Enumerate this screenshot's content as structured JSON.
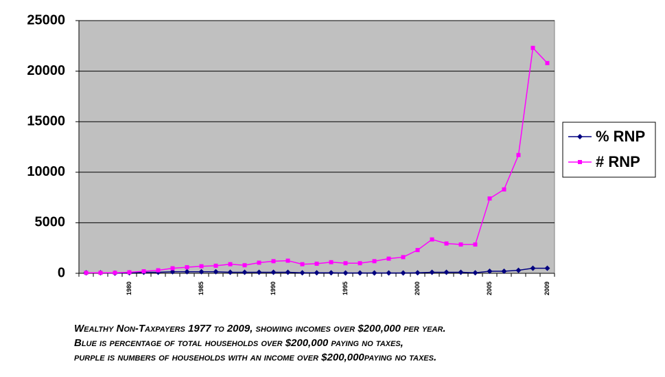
{
  "chart_data": {
    "type": "line",
    "categories": [
      null,
      null,
      null,
      "1980",
      null,
      null,
      null,
      null,
      "1985",
      null,
      null,
      null,
      null,
      "1990",
      null,
      null,
      null,
      null,
      "1995",
      null,
      null,
      null,
      null,
      "2000",
      null,
      null,
      null,
      null,
      "2005",
      null,
      null,
      null,
      "2009"
    ],
    "series": [
      {
        "name": "% RNP",
        "color": "#000080",
        "marker": "diamond",
        "values": [
          50,
          50,
          20,
          50,
          100,
          100,
          150,
          150,
          150,
          150,
          100,
          100,
          100,
          100,
          100,
          50,
          50,
          50,
          30,
          30,
          30,
          30,
          30,
          50,
          100,
          100,
          100,
          50,
          200,
          200,
          300,
          500,
          500
        ]
      },
      {
        "name": "# RNP",
        "color": "#ff00ff",
        "marker": "square",
        "values": [
          50,
          50,
          50,
          100,
          200,
          300,
          500,
          600,
          700,
          750,
          900,
          800,
          1050,
          1200,
          1250,
          900,
          950,
          1100,
          1000,
          1000,
          1200,
          1450,
          1600,
          2300,
          3350,
          2950,
          2850,
          2850,
          7400,
          8300,
          11700,
          22300,
          20800
        ]
      }
    ],
    "ylim": [
      0,
      25000
    ],
    "yticks": [
      0,
      5000,
      10000,
      15000,
      20000,
      25000
    ],
    "grid": true,
    "legend": "right",
    "plot_background": "#c0c0c0"
  },
  "caption": [
    "Wealthy Non-Taxpayers 1977 to 2009, showing incomes over $200,000 per year.",
    "Blue is percentage of total households over $200,000 paying no taxes,",
    "purple is numbers of households with an income over $200,000paying no taxes."
  ]
}
